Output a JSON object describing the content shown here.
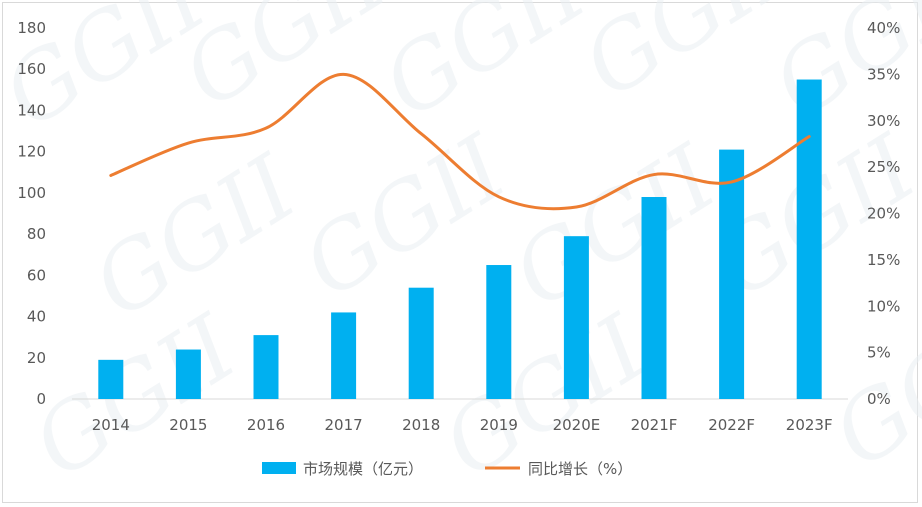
{
  "chart_data": {
    "type": "bar",
    "categories": [
      "2014",
      "2015",
      "2016",
      "2017",
      "2018",
      "2019",
      "2020E",
      "2021F",
      "2022F",
      "2023F"
    ],
    "series": [
      {
        "name": "市场规模（亿元）",
        "type": "bar",
        "axis": "left",
        "color": "#00b0f0",
        "values": [
          19,
          24,
          31,
          42,
          54,
          65,
          79,
          98,
          121,
          155
        ]
      },
      {
        "name": "同比增长（%）",
        "type": "line",
        "axis": "right",
        "color": "#ed7d31",
        "values": [
          24.1,
          27.6,
          29.2,
          35.0,
          28.6,
          21.8,
          20.7,
          24.2,
          23.4,
          28.3
        ]
      }
    ],
    "y_left": {
      "min": 0,
      "max": 180,
      "step": 20,
      "ticks": [
        "0",
        "20",
        "40",
        "60",
        "80",
        "100",
        "120",
        "140",
        "160",
        "180"
      ]
    },
    "y_right": {
      "min": 0,
      "max": 40,
      "step": 5,
      "ticks": [
        "0%",
        "5%",
        "10%",
        "15%",
        "20%",
        "25%",
        "30%",
        "35%",
        "40%"
      ]
    },
    "grid": false,
    "legend_position": "bottom",
    "watermark": "GGII"
  }
}
